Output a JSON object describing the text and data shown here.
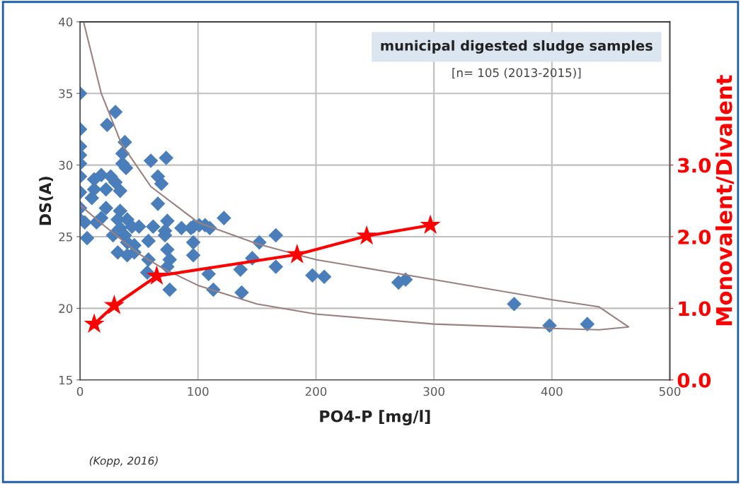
{
  "chart_data": {
    "type": "scatter",
    "title": "municipal digested sludge samples",
    "subtitle": "[n= 105 (2013-2015)]",
    "xlabel": "PO4-P [mg/l]",
    "ylabel": "DS(A)",
    "y2label": "Monovalent/Divalent",
    "annotations": [
      "(Kopp, 2016)"
    ],
    "xlim": [
      0,
      500
    ],
    "xticks": [
      0,
      100,
      200,
      300,
      400,
      500
    ],
    "ylim": [
      15,
      40
    ],
    "yticks": [
      15,
      20,
      25,
      30,
      35,
      40
    ],
    "y2lim": [
      0,
      5
    ],
    "y2ticks": [
      {
        "value": 0,
        "label": "0.0"
      },
      {
        "value": 1,
        "label": "1.0"
      },
      {
        "value": 2,
        "label": "2.0"
      },
      {
        "value": 3,
        "label": "3.0"
      }
    ],
    "grid": true,
    "legend": false,
    "series": [
      {
        "color": "#4a7ebb",
        "marker": "diamond",
        "x": [
          0,
          0,
          23,
          30,
          0,
          0,
          0,
          0,
          0,
          0,
          0,
          6,
          38,
          36,
          36,
          39,
          60,
          73,
          66,
          69,
          66,
          12,
          18,
          26,
          30,
          12,
          22,
          34,
          10,
          22,
          18,
          14,
          4,
          34,
          32,
          40,
          44,
          34,
          28,
          38,
          50,
          62,
          40,
          46,
          58,
          72,
          72,
          32,
          40,
          46,
          58,
          74,
          76,
          74,
          86,
          96,
          106,
          96,
          96,
          109,
          113,
          76,
          57,
          122,
          110,
          101,
          94,
          74,
          136,
          137,
          146,
          152,
          166,
          166,
          197,
          207,
          270,
          276,
          368,
          398,
          430
        ],
        "values": [
          35.0,
          32.5,
          32.8,
          33.7,
          31.3,
          30.7,
          30.1,
          29.2,
          28.1,
          27.0,
          26.2,
          24.9,
          31.6,
          30.8,
          30.1,
          29.8,
          30.3,
          30.5,
          29.2,
          28.7,
          27.3,
          29.0,
          29.3,
          29.2,
          28.8,
          28.3,
          28.3,
          28.2,
          27.7,
          27.0,
          26.3,
          26.0,
          26.0,
          26.8,
          26.2,
          26.2,
          25.7,
          25.6,
          25.1,
          25.1,
          25.7,
          25.7,
          24.6,
          24.4,
          24.7,
          25.4,
          25.1,
          23.9,
          23.7,
          23.9,
          23.4,
          24.1,
          23.4,
          22.9,
          25.6,
          25.7,
          25.8,
          24.6,
          23.7,
          22.4,
          21.3,
          21.3,
          22.5,
          26.3,
          25.6,
          25.8,
          25.6,
          26.1,
          22.7,
          21.1,
          23.5,
          24.6,
          25.1,
          22.9,
          22.3,
          22.2,
          21.8,
          22.0,
          20.3,
          18.8,
          18.9
        ]
      },
      {
        "type": "line",
        "color": "#9a8080",
        "marker": "none",
        "x": [
          3,
          18,
          35,
          60,
          100,
          150,
          200,
          300,
          400,
          440,
          465,
          440,
          400,
          300,
          200,
          150,
          100,
          70,
          50,
          20,
          0
        ],
        "values": [
          40,
          35,
          31.5,
          28.5,
          26,
          24.5,
          23.4,
          22,
          20.6,
          20.1,
          18.7,
          18.5,
          18.6,
          18.9,
          19.6,
          20.3,
          21.6,
          22.8,
          23.8,
          25.8,
          27.2
        ]
      },
      {
        "type": "line",
        "axis": "y2",
        "color": "#ff0000",
        "marker": "star",
        "x": [
          12,
          29,
          65,
          184,
          243,
          297
        ],
        "values": [
          0.78,
          1.04,
          1.45,
          1.75,
          2.01,
          2.16
        ]
      }
    ]
  }
}
